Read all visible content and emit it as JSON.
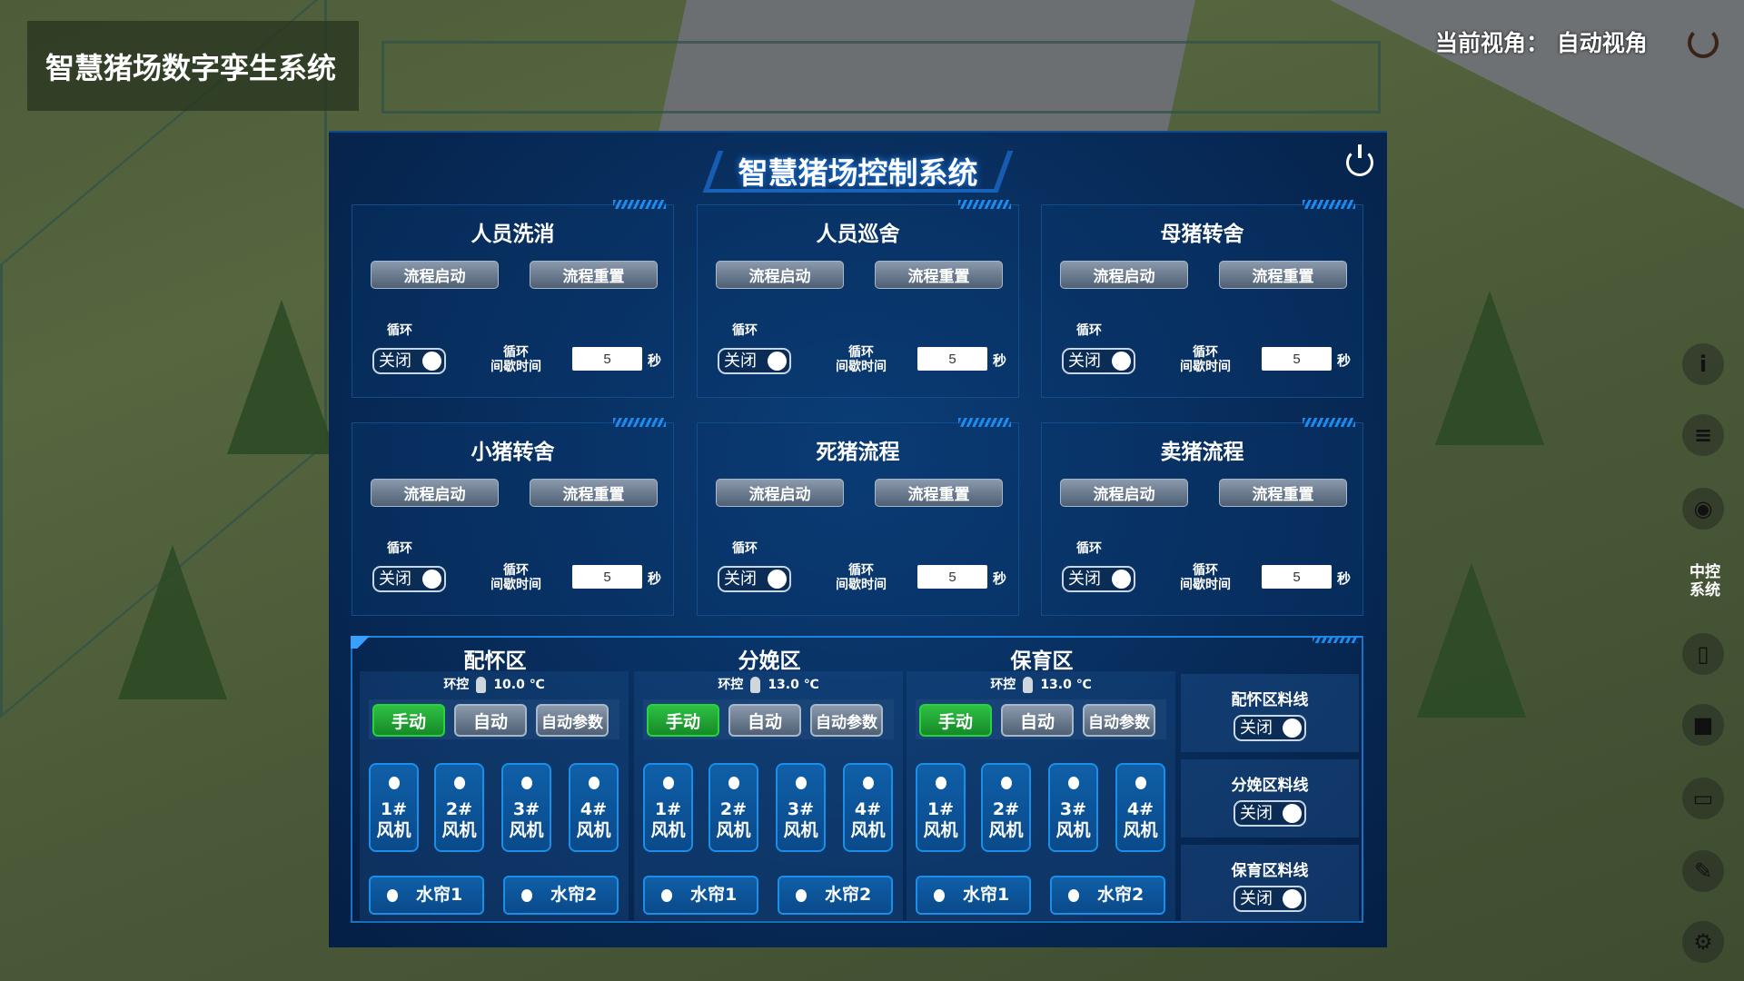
{
  "app_title": "智慧猪场数字孪生系统",
  "view": {
    "label": "当前视角：",
    "value": "自动视角"
  },
  "side_menu": {
    "icons": [
      "info-icon",
      "list-icon",
      "eye-icon",
      "central-control",
      "phone-icon",
      "camera-icon",
      "image-icon",
      "pen-icon",
      "gear-icon"
    ],
    "central_label": "中控系统"
  },
  "panel": {
    "title": "智慧猪场控制系统"
  },
  "cards": [
    {
      "title": "人员洗消",
      "start": "流程启动",
      "reset": "流程重置",
      "cycle": "循环",
      "toggle": "关闭",
      "interval": "循环间歇时间",
      "value": "5",
      "unit": "秒"
    },
    {
      "title": "人员巡舍",
      "start": "流程启动",
      "reset": "流程重置",
      "cycle": "循环",
      "toggle": "关闭",
      "interval": "循环间歇时间",
      "value": "5",
      "unit": "秒"
    },
    {
      "title": "母猪转舍",
      "start": "流程启动",
      "reset": "流程重置",
      "cycle": "循环",
      "toggle": "关闭",
      "interval": "循环间歇时间",
      "value": "5",
      "unit": "秒"
    },
    {
      "title": "小猪转舍",
      "start": "流程启动",
      "reset": "流程重置",
      "cycle": "循环",
      "toggle": "关闭",
      "interval": "循环间歇时间",
      "value": "5",
      "unit": "秒"
    },
    {
      "title": "死猪流程",
      "start": "流程启动",
      "reset": "流程重置",
      "cycle": "循环",
      "toggle": "关闭",
      "interval": "循环间歇时间",
      "value": "5",
      "unit": "秒"
    },
    {
      "title": "卖猪流程",
      "start": "流程启动",
      "reset": "流程重置",
      "cycle": "循环",
      "toggle": "关闭",
      "interval": "循环间歇时间",
      "value": "5",
      "unit": "秒"
    }
  ],
  "zones": [
    {
      "title": "配怀区",
      "env": "环控",
      "temp": "10.0 ℃",
      "manual": "手动",
      "auto": "自动",
      "params": "自动参数",
      "mode": "手动",
      "fans": [
        "1#风机",
        "2#风机",
        "3#风机",
        "4#风机"
      ],
      "curtains": [
        "水帘1",
        "水帘2"
      ]
    },
    {
      "title": "分娩区",
      "env": "环控",
      "temp": "13.0 ℃",
      "manual": "手动",
      "auto": "自动",
      "params": "自动参数",
      "mode": "手动",
      "fans": [
        "1#风机",
        "2#风机",
        "3#风机",
        "4#风机"
      ],
      "curtains": [
        "水帘1",
        "水帘2"
      ]
    },
    {
      "title": "保育区",
      "env": "环控",
      "temp": "13.0 ℃",
      "manual": "手动",
      "auto": "自动",
      "params": "自动参数",
      "mode": "手动",
      "fans": [
        "1#风机",
        "2#风机",
        "3#风机",
        "4#风机"
      ],
      "curtains": [
        "水帘1",
        "水帘2"
      ]
    }
  ],
  "feedlines": [
    {
      "title": "配怀区料线",
      "toggle": "关闭"
    },
    {
      "title": "分娩区料线",
      "toggle": "关闭"
    },
    {
      "title": "保育区料线",
      "toggle": "关闭"
    }
  ],
  "colors": {
    "panel_bg": "#072a57",
    "accent": "#1a8ee8",
    "active_green": "#27d43c"
  }
}
